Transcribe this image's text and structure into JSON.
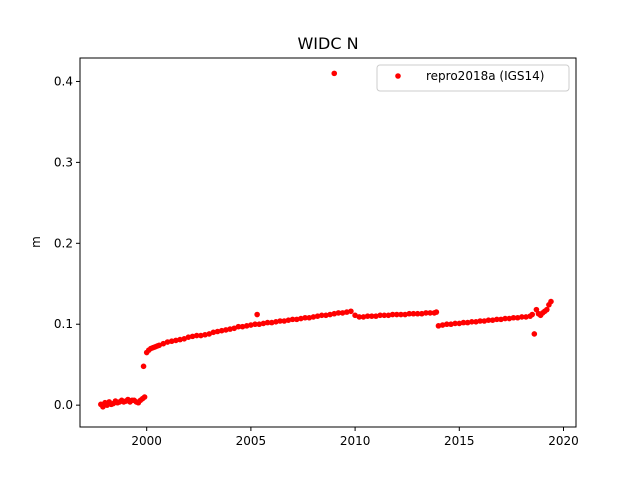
{
  "chart_data": {
    "type": "scatter",
    "title": "WIDC N",
    "xlabel": "",
    "ylabel": "m",
    "xlim": [
      1996.8,
      2020.6
    ],
    "ylim": [
      -0.027,
      0.429
    ],
    "x_ticks": [
      2000,
      2005,
      2010,
      2015,
      2020
    ],
    "y_ticks": [
      0.0,
      0.1,
      0.2,
      0.3,
      0.4
    ],
    "x_tick_labels": [
      "2000",
      "2005",
      "2010",
      "2015",
      "2020"
    ],
    "y_tick_labels": [
      "0.0",
      "0.1",
      "0.2",
      "0.3",
      "0.4"
    ],
    "grid": false,
    "legend_position": "top-right",
    "series": [
      {
        "name": "repro2018a (IGS14)",
        "color": "#ff0000",
        "marker": "circle",
        "points": [
          [
            1997.8,
            0.001
          ],
          [
            1997.9,
            -0.002
          ],
          [
            1998.0,
            0.003
          ],
          [
            1998.1,
            0.0
          ],
          [
            1998.2,
            0.004
          ],
          [
            1998.3,
            0.001
          ],
          [
            1998.4,
            0.002
          ],
          [
            1998.5,
            0.005
          ],
          [
            1998.6,
            0.003
          ],
          [
            1998.7,
            0.004
          ],
          [
            1998.8,
            0.006
          ],
          [
            1998.9,
            0.004
          ],
          [
            1999.0,
            0.005
          ],
          [
            1999.1,
            0.007
          ],
          [
            1999.2,
            0.004
          ],
          [
            1999.3,
            0.006
          ],
          [
            1999.4,
            0.006
          ],
          [
            1999.5,
            0.004
          ],
          [
            1999.6,
            0.003
          ],
          [
            1999.7,
            0.006
          ],
          [
            1999.8,
            0.008
          ],
          [
            1999.9,
            0.01
          ],
          [
            1999.85,
            0.048
          ],
          [
            2000.0,
            0.065
          ],
          [
            2000.1,
            0.068
          ],
          [
            2000.2,
            0.07
          ],
          [
            2000.3,
            0.071
          ],
          [
            2000.4,
            0.072
          ],
          [
            2000.5,
            0.073
          ],
          [
            2000.6,
            0.074
          ],
          [
            2000.8,
            0.076
          ],
          [
            2001.0,
            0.078
          ],
          [
            2001.2,
            0.079
          ],
          [
            2001.4,
            0.08
          ],
          [
            2001.6,
            0.081
          ],
          [
            2001.8,
            0.082
          ],
          [
            2002.0,
            0.084
          ],
          [
            2002.2,
            0.085
          ],
          [
            2002.4,
            0.086
          ],
          [
            2002.6,
            0.086
          ],
          [
            2002.8,
            0.087
          ],
          [
            2003.0,
            0.088
          ],
          [
            2003.2,
            0.09
          ],
          [
            2003.4,
            0.091
          ],
          [
            2003.6,
            0.092
          ],
          [
            2003.8,
            0.093
          ],
          [
            2004.0,
            0.094
          ],
          [
            2004.2,
            0.095
          ],
          [
            2004.4,
            0.097
          ],
          [
            2004.6,
            0.097
          ],
          [
            2004.8,
            0.098
          ],
          [
            2005.0,
            0.099
          ],
          [
            2005.2,
            0.1
          ],
          [
            2005.3,
            0.112
          ],
          [
            2005.4,
            0.1
          ],
          [
            2005.6,
            0.101
          ],
          [
            2005.8,
            0.102
          ],
          [
            2006.0,
            0.102
          ],
          [
            2006.2,
            0.103
          ],
          [
            2006.4,
            0.104
          ],
          [
            2006.6,
            0.104
          ],
          [
            2006.8,
            0.105
          ],
          [
            2007.0,
            0.106
          ],
          [
            2007.2,
            0.106
          ],
          [
            2007.4,
            0.107
          ],
          [
            2007.6,
            0.108
          ],
          [
            2007.8,
            0.108
          ],
          [
            2008.0,
            0.109
          ],
          [
            2008.2,
            0.11
          ],
          [
            2008.4,
            0.111
          ],
          [
            2008.6,
            0.111
          ],
          [
            2008.8,
            0.112
          ],
          [
            2009.0,
            0.113
          ],
          [
            2009.2,
            0.114
          ],
          [
            2009.4,
            0.114
          ],
          [
            2009.6,
            0.115
          ],
          [
            2009.8,
            0.116
          ],
          [
            2009.0,
            0.41
          ],
          [
            2010.0,
            0.111
          ],
          [
            2010.2,
            0.109
          ],
          [
            2010.4,
            0.109
          ],
          [
            2010.6,
            0.11
          ],
          [
            2010.8,
            0.11
          ],
          [
            2011.0,
            0.11
          ],
          [
            2011.2,
            0.111
          ],
          [
            2011.4,
            0.111
          ],
          [
            2011.6,
            0.111
          ],
          [
            2011.8,
            0.112
          ],
          [
            2012.0,
            0.112
          ],
          [
            2012.2,
            0.112
          ],
          [
            2012.4,
            0.112
          ],
          [
            2012.6,
            0.113
          ],
          [
            2012.8,
            0.113
          ],
          [
            2013.0,
            0.113
          ],
          [
            2013.2,
            0.113
          ],
          [
            2013.4,
            0.114
          ],
          [
            2013.6,
            0.114
          ],
          [
            2013.8,
            0.114
          ],
          [
            2013.9,
            0.115
          ],
          [
            2014.0,
            0.098
          ],
          [
            2014.2,
            0.099
          ],
          [
            2014.4,
            0.1
          ],
          [
            2014.6,
            0.1
          ],
          [
            2014.8,
            0.101
          ],
          [
            2015.0,
            0.101
          ],
          [
            2015.2,
            0.102
          ],
          [
            2015.4,
            0.102
          ],
          [
            2015.6,
            0.103
          ],
          [
            2015.8,
            0.103
          ],
          [
            2016.0,
            0.104
          ],
          [
            2016.2,
            0.104
          ],
          [
            2016.4,
            0.105
          ],
          [
            2016.6,
            0.105
          ],
          [
            2016.8,
            0.106
          ],
          [
            2017.0,
            0.106
          ],
          [
            2017.2,
            0.107
          ],
          [
            2017.4,
            0.107
          ],
          [
            2017.6,
            0.108
          ],
          [
            2017.8,
            0.108
          ],
          [
            2018.0,
            0.109
          ],
          [
            2018.2,
            0.109
          ],
          [
            2018.4,
            0.11
          ],
          [
            2018.5,
            0.112
          ],
          [
            2018.6,
            0.088
          ],
          [
            2018.7,
            0.118
          ],
          [
            2018.8,
            0.113
          ],
          [
            2018.9,
            0.111
          ],
          [
            2019.0,
            0.114
          ],
          [
            2019.1,
            0.116
          ],
          [
            2019.2,
            0.118
          ],
          [
            2019.3,
            0.124
          ],
          [
            2019.4,
            0.128
          ]
        ]
      }
    ]
  }
}
